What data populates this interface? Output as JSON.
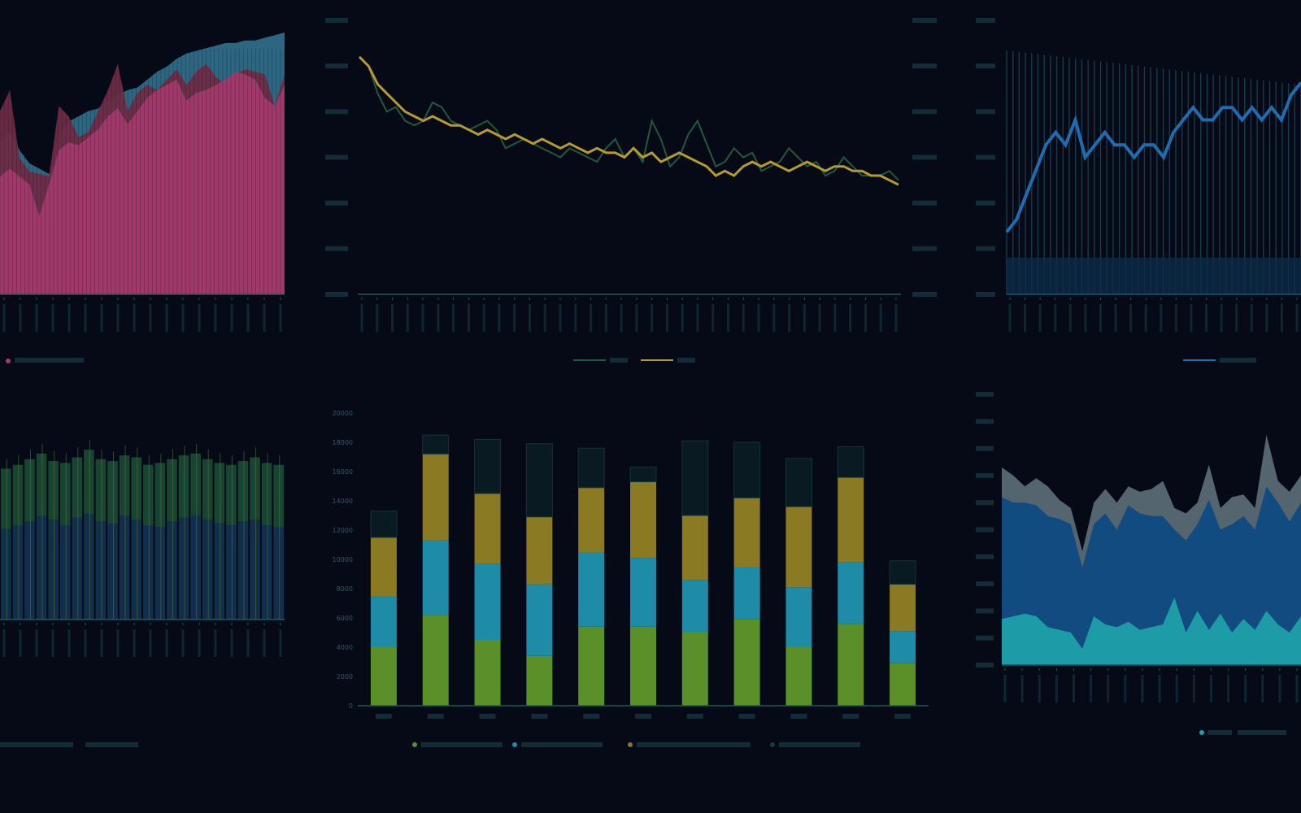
{
  "colors": {
    "background": "#050a16",
    "axis": "#1c5a5a",
    "grid": "#0f2e33",
    "magenta": "#a23a6c",
    "crimson": "#6e2b45",
    "steel": "#2f6b87",
    "green_line": "#1f5a3c",
    "olive_line": "#b59b2c",
    "blue_line": "#1f6cae",
    "bar_green": "#5a8f2a",
    "bar_teal": "#1e8ca6",
    "bar_olive": "#8a7a24",
    "area_gray": "#5a6a75",
    "area_blue": "#0f4a80",
    "area_cyan": "#1f9faa",
    "vbar_blue": "#1b4c78"
  },
  "chart_data": [
    {
      "id": "top-left",
      "type": "area",
      "series": [
        {
          "name": "",
          "color": "#2f6b87",
          "values": [
            58,
            62,
            55,
            50,
            48,
            46,
            60,
            66,
            68,
            70,
            71,
            74,
            76,
            78,
            79,
            82,
            85,
            87,
            90,
            92,
            93,
            94,
            95,
            96,
            96,
            97,
            97,
            98,
            99,
            100
          ]
        },
        {
          "name": "",
          "color": "#6e2b45",
          "values": [
            70,
            78,
            52,
            47,
            46,
            45,
            72,
            68,
            60,
            62,
            70,
            78,
            88,
            70,
            77,
            80,
            78,
            82,
            86,
            80,
            85,
            88,
            83,
            80,
            84,
            86,
            85,
            84,
            72,
            84
          ]
        },
        {
          "name": "",
          "color": "#a23a6c",
          "values": [
            45,
            48,
            45,
            42,
            30,
            42,
            55,
            58,
            57,
            60,
            63,
            68,
            71,
            65,
            70,
            75,
            78,
            80,
            82,
            74,
            77,
            78,
            80,
            82,
            85,
            84,
            82,
            75,
            72,
            80
          ]
        }
      ],
      "ylim": [
        0,
        100
      ]
    },
    {
      "id": "top-center",
      "type": "line",
      "series": [
        {
          "name": "",
          "color": "#1f5a3c",
          "values": [
            27.6,
            27.5,
            27.2,
            27.0,
            27.05,
            26.9,
            26.85,
            26.9,
            27.1,
            27.05,
            26.9,
            26.85,
            26.8,
            26.85,
            26.9,
            26.8,
            26.6,
            26.65,
            26.7,
            26.65,
            26.6,
            26.55,
            26.5,
            26.6,
            26.55,
            26.5,
            26.45,
            26.6,
            26.7,
            26.5,
            26.6,
            26.45,
            26.9,
            26.7,
            26.4,
            26.5,
            26.75,
            26.9,
            26.65,
            26.4,
            26.45,
            26.6,
            26.5,
            26.55,
            26.35,
            26.4,
            26.45,
            26.6,
            26.5,
            26.4,
            26.45,
            26.3,
            26.35,
            26.5,
            26.4,
            26.3,
            26.3,
            26.3,
            26.35,
            26.25
          ]
        },
        {
          "name": "",
          "color": "#b59b2c",
          "values": [
            27.6,
            27.5,
            27.3,
            27.2,
            27.1,
            27.0,
            26.95,
            26.9,
            26.95,
            26.9,
            26.85,
            26.85,
            26.8,
            26.75,
            26.8,
            26.75,
            26.7,
            26.75,
            26.7,
            26.65,
            26.7,
            26.65,
            26.6,
            26.65,
            26.6,
            26.55,
            26.6,
            26.55,
            26.55,
            26.5,
            26.6,
            26.5,
            26.55,
            26.45,
            26.5,
            26.55,
            26.5,
            26.45,
            26.4,
            26.3,
            26.35,
            26.3,
            26.4,
            26.45,
            26.4,
            26.45,
            26.4,
            26.35,
            26.4,
            26.45,
            26.4,
            26.35,
            26.4,
            26.4,
            26.35,
            26.35,
            26.3,
            26.3,
            26.25,
            26.2
          ]
        }
      ],
      "ylim": [
        25.0,
        28.0
      ],
      "y2lim": [
        15.0,
        21.0
      ]
    },
    {
      "id": "top-right",
      "type": "line",
      "series": [
        {
          "name": "",
          "color": "#1f6cae",
          "values": [
            63,
            64,
            66,
            68,
            70,
            71,
            70,
            72,
            69,
            70,
            71,
            70,
            70,
            69,
            70,
            70,
            69,
            71,
            72,
            73,
            72,
            72,
            73,
            73,
            72,
            73,
            72,
            73,
            72,
            74,
            75
          ]
        }
      ],
      "ylim": [
        58,
        80
      ]
    },
    {
      "id": "bottom-left",
      "type": "bar",
      "series": [
        {
          "name": "",
          "color": "#1b4c78",
          "values": [
            48,
            50,
            52,
            55,
            53,
            50,
            54,
            56,
            52,
            51,
            55,
            53,
            50,
            49,
            52,
            54,
            55,
            53,
            51,
            50,
            52,
            53,
            50,
            49
          ]
        },
        {
          "name": "",
          "color": "#1f5a3c",
          "values": [
            80,
            82,
            85,
            88,
            84,
            83,
            86,
            90,
            85,
            84,
            87,
            86,
            82,
            83,
            85,
            87,
            88,
            85,
            83,
            82,
            84,
            86,
            83,
            82
          ]
        }
      ],
      "ylim": [
        0,
        100
      ]
    },
    {
      "id": "bottom-center",
      "type": "bar",
      "categories": [
        "1",
        "2",
        "3",
        "4",
        "5",
        "6",
        "7",
        "8",
        "9",
        "10",
        "11"
      ],
      "series": [
        {
          "name": "",
          "color": "#5a8f2a",
          "values": [
            4000,
            6200,
            4500,
            3400,
            5400,
            5400,
            5000,
            5900,
            4000,
            5600,
            2900
          ]
        },
        {
          "name": "",
          "color": "#1e8ca6",
          "values": [
            3500,
            5100,
            5200,
            4900,
            5100,
            4700,
            3600,
            3600,
            4100,
            4200,
            2200
          ]
        },
        {
          "name": "",
          "color": "#8a7a24",
          "values": [
            4000,
            5900,
            4800,
            4600,
            4400,
            5200,
            4400,
            4700,
            5500,
            5800,
            3200
          ]
        },
        {
          "name": "",
          "color": "#0a1a22",
          "values": [
            1800,
            1300,
            3700,
            5000,
            2700,
            1000,
            5100,
            3800,
            3300,
            2100,
            1600
          ]
        }
      ],
      "ylim": [
        0,
        20000
      ],
      "yticks": [
        "0",
        "2000",
        "4000",
        "6000",
        "8000",
        "10000",
        "12000",
        "14000",
        "16000",
        "18000",
        "20000"
      ]
    },
    {
      "id": "bottom-right",
      "type": "area",
      "series": [
        {
          "name": "",
          "color": "#5a6a75",
          "values": [
            7.3,
            7.0,
            6.6,
            6.9,
            6.6,
            6.1,
            5.8,
            4.2,
            6.0,
            6.5,
            6.0,
            6.6,
            6.4,
            6.5,
            6.8,
            5.8,
            5.6,
            6.0,
            7.4,
            5.8,
            6.2,
            6.3,
            5.8,
            8.5,
            6.8,
            6.4,
            7.0
          ]
        },
        {
          "name": "",
          "color": "#0f4a80",
          "values": [
            6.2,
            6.0,
            6.0,
            5.9,
            5.5,
            5.4,
            5.2,
            3.6,
            5.2,
            5.6,
            5.0,
            5.9,
            5.6,
            5.5,
            5.5,
            5.0,
            4.6,
            5.2,
            6.1,
            5.0,
            5.2,
            5.5,
            5.0,
            6.6,
            6.0,
            5.3,
            6.0
          ]
        },
        {
          "name": "",
          "color": "#1f9faa",
          "values": [
            1.7,
            1.8,
            1.9,
            1.8,
            1.4,
            1.3,
            1.2,
            0.6,
            1.8,
            1.5,
            1.4,
            1.6,
            1.3,
            1.4,
            1.5,
            2.5,
            1.2,
            2.0,
            1.3,
            1.9,
            1.2,
            1.7,
            1.3,
            2.0,
            1.5,
            1.2,
            1.8
          ]
        }
      ],
      "ylim": [
        0,
        10
      ]
    }
  ]
}
